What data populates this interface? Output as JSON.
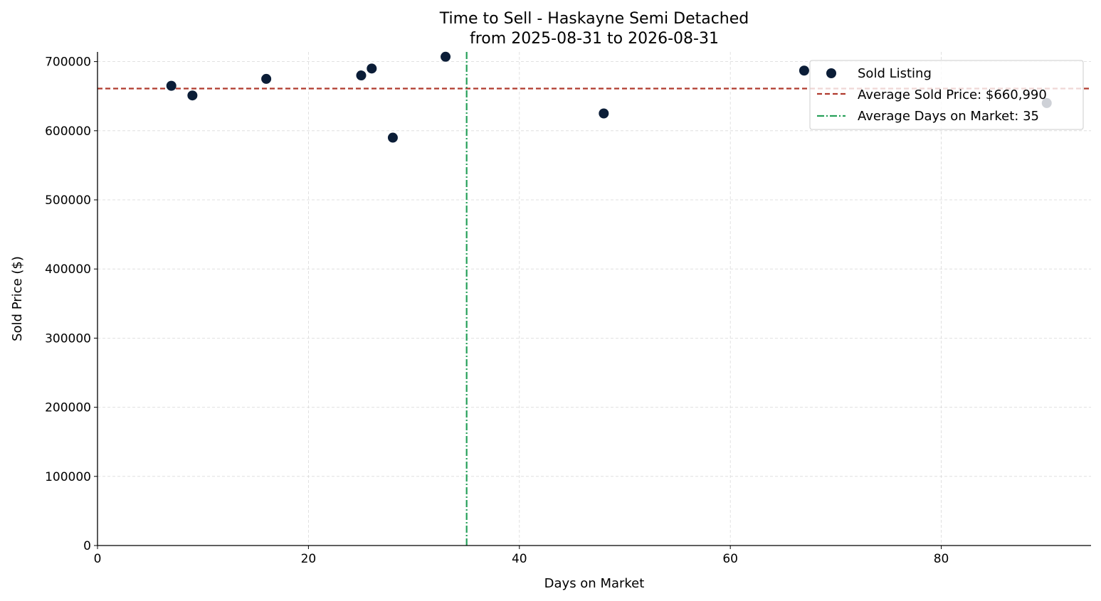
{
  "chart_data": {
    "type": "scatter",
    "title": "Time to Sell - Haskayne Semi Detached",
    "subtitle": "from 2025-08-31 to 2026-08-31",
    "xlabel": "Days on Market",
    "ylabel": "Sold Price ($)",
    "xlim": [
      0,
      94.2
    ],
    "ylim": [
      0,
      714000
    ],
    "xticks": [
      0,
      20,
      40,
      60,
      80
    ],
    "yticks": [
      0,
      100000,
      200000,
      300000,
      400000,
      500000,
      600000,
      700000
    ],
    "grid": true,
    "legend_position": "top-right",
    "series": [
      {
        "name": "Sold Listing",
        "color": "#0b1d37",
        "points": [
          {
            "x": 7,
            "y": 665000
          },
          {
            "x": 9,
            "y": 651000
          },
          {
            "x": 16,
            "y": 675000
          },
          {
            "x": 25,
            "y": 680000
          },
          {
            "x": 26,
            "y": 690000
          },
          {
            "x": 28,
            "y": 590000
          },
          {
            "x": 33,
            "y": 707000
          },
          {
            "x": 48,
            "y": 625000
          },
          {
            "x": 67,
            "y": 687000
          },
          {
            "x": 90,
            "y": 640000
          }
        ]
      }
    ],
    "reference_lines": [
      {
        "orientation": "horizontal",
        "value": 660990,
        "label": "Average Sold Price: $660,990",
        "color": "#b03a2e",
        "style": "dashed"
      },
      {
        "orientation": "vertical",
        "value": 35,
        "label": "Average Days on Market: 35",
        "color": "#27a05a",
        "style": "dashdot"
      }
    ]
  }
}
